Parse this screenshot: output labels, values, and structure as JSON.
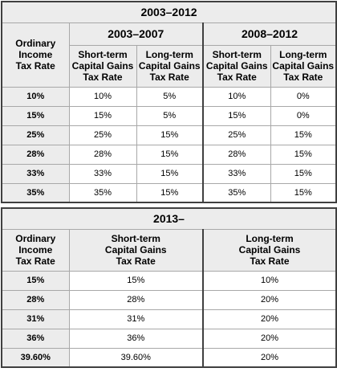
{
  "top": {
    "title": "2003–2012",
    "period_a": "2003–2007",
    "period_b": "2008–2012",
    "col_ordinary": [
      "Ordinary",
      "Income",
      "Tax Rate"
    ],
    "col_short": [
      "Short-term",
      "Capital Gains",
      "Tax Rate"
    ],
    "col_long": [
      "Long-term",
      "Capital Gains",
      "Tax Rate"
    ],
    "rows": [
      {
        "rate": "10%",
        "a_short": "10%",
        "a_long": "5%",
        "b_short": "10%",
        "b_long": "0%"
      },
      {
        "rate": "15%",
        "a_short": "15%",
        "a_long": "5%",
        "b_short": "15%",
        "b_long": "0%"
      },
      {
        "rate": "25%",
        "a_short": "25%",
        "a_long": "15%",
        "b_short": "25%",
        "b_long": "15%"
      },
      {
        "rate": "28%",
        "a_short": "28%",
        "a_long": "15%",
        "b_short": "28%",
        "b_long": "15%"
      },
      {
        "rate": "33%",
        "a_short": "33%",
        "a_long": "15%",
        "b_short": "33%",
        "b_long": "15%"
      },
      {
        "rate": "35%",
        "a_short": "35%",
        "a_long": "15%",
        "b_short": "35%",
        "b_long": "15%"
      }
    ]
  },
  "bottom": {
    "title": "2013–",
    "col_ordinary": [
      "Ordinary",
      "Income",
      "Tax Rate"
    ],
    "col_short": [
      "Short-term",
      "Capital Gains",
      "Tax Rate"
    ],
    "col_long": [
      "Long-term",
      "Capital Gains",
      "Tax Rate"
    ],
    "rows": [
      {
        "rate": "15%",
        "short": "15%",
        "long": "10%"
      },
      {
        "rate": "28%",
        "short": "28%",
        "long": "20%"
      },
      {
        "rate": "31%",
        "short": "31%",
        "long": "20%"
      },
      {
        "rate": "36%",
        "short": "36%",
        "long": "20%"
      },
      {
        "rate": "39.60%",
        "short": "39.60%",
        "long": "20%"
      }
    ]
  }
}
